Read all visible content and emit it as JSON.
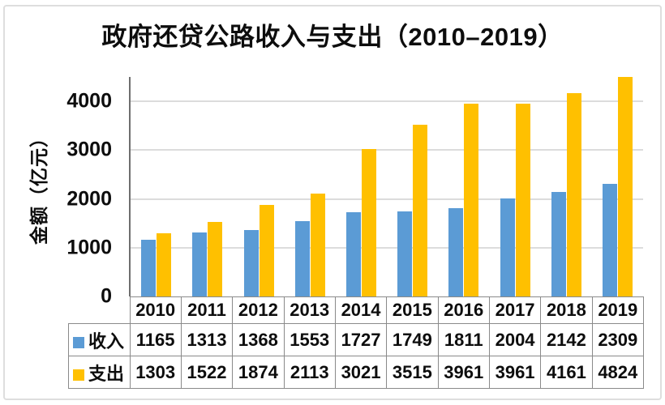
{
  "title": "政府还贷公路收入与支出（2010–2019）",
  "y_axis": {
    "label": "金额（亿元）",
    "ticks": [
      0,
      1000,
      2000,
      3000,
      4000
    ]
  },
  "legend": [
    {
      "key": "income",
      "label": "收入",
      "color": "#5B9BD5"
    },
    {
      "key": "expense",
      "label": "支出",
      "color": "#FFC000"
    }
  ],
  "colors": {
    "income_bar": "#5B9BD5",
    "expense_bar": "#FFC000",
    "gridline": "#dcdcdc",
    "table_border": "#8a8a8a",
    "axis_line": "#6e6e6e"
  },
  "chart_data": {
    "type": "bar",
    "title": "政府还贷公路收入与支出（2010–2019）",
    "categories": [
      "2010",
      "2011",
      "2012",
      "2013",
      "2014",
      "2015",
      "2016",
      "2017",
      "2018",
      "2019"
    ],
    "series": [
      {
        "key": "income",
        "name": "收入",
        "color": "#5B9BD5",
        "values": [
          1165,
          1313,
          1368,
          1553,
          1727,
          1749,
          1811,
          2004,
          2142,
          2309
        ]
      },
      {
        "key": "expense",
        "name": "支出",
        "color": "#FFC000",
        "values": [
          1303,
          1522,
          1874,
          2113,
          3021,
          3515,
          3961,
          3961,
          4161,
          4824
        ]
      }
    ],
    "xlabel": "",
    "ylabel": "金额（亿元）",
    "ylim": [
      0,
      4500
    ],
    "yticks": [
      0,
      1000,
      2000,
      3000,
      4000
    ],
    "grid": true,
    "legend_position": "table-left",
    "note": "values table shown below x-axis; 2019 expense bar clipped at axis top"
  }
}
